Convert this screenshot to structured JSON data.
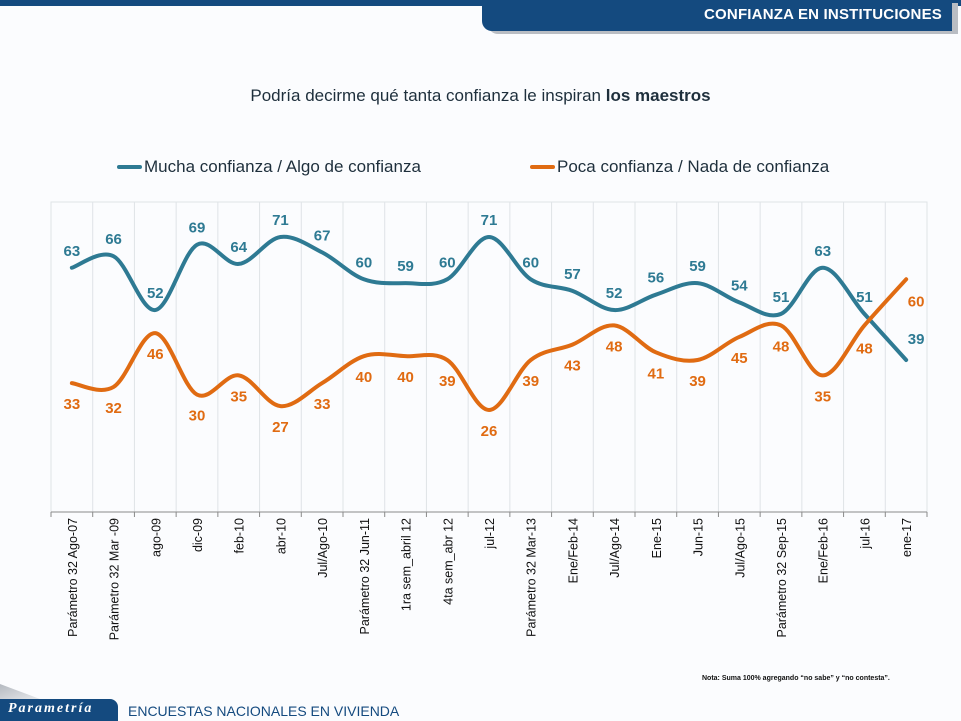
{
  "header": {
    "banner_title": "CONFIANZA EN INSTITUCIONES"
  },
  "question": {
    "prefix": "Podría decirme qué tanta confianza le inspiran ",
    "emphasis": "los maestros"
  },
  "colors": {
    "brand": "#144a7f",
    "series_trust": "#2e7a93",
    "series_distrust": "#e06b12"
  },
  "chart_data": {
    "type": "line",
    "title": "Podría decirme qué tanta confianza le inspiran los maestros",
    "xlabel": "",
    "ylabel": "",
    "ylim": [
      0,
      100
    ],
    "grid": "vertical",
    "legend_position": "top",
    "smooth": true,
    "categories": [
      "Parámetro 32 Ago-07",
      "Parámetro 32 Mar -09",
      "ago-09",
      "dic-09",
      "feb-10",
      "abr-10",
      "Jul/Ago-10",
      "Parámetro 32 Jun-11",
      "1ra sem_abril 12",
      "4ta sem_abr 12",
      "jul-12",
      "Parámetro 32 Mar-13",
      "Ene/Feb-14",
      "Jul/Ago-14",
      "Ene-15",
      "Jun-15",
      "Jul/Ago-15",
      "Parámetro 32 Sep-15",
      "Ene/Feb-16",
      "jul-16",
      "ene-17"
    ],
    "series": [
      {
        "name": "Mucha confianza / Algo de confianza",
        "color": "#2e7a93",
        "values": [
          63,
          66,
          52,
          69,
          64,
          71,
          67,
          60,
          59,
          60,
          71,
          60,
          57,
          52,
          56,
          59,
          54,
          51,
          63,
          51,
          39
        ]
      },
      {
        "name": "Poca confianza / Nada de confianza",
        "color": "#e06b12",
        "values": [
          33,
          32,
          46,
          30,
          35,
          27,
          33,
          40,
          40,
          39,
          26,
          39,
          43,
          48,
          41,
          39,
          45,
          48,
          35,
          48,
          60
        ]
      }
    ]
  },
  "footer": {
    "brand": "Parametría",
    "survey": "ENCUESTAS NACIONALES  EN VIVIENDA",
    "note": "Nota: Suma 100%  agregando “no sabe” y “no contesta”."
  }
}
